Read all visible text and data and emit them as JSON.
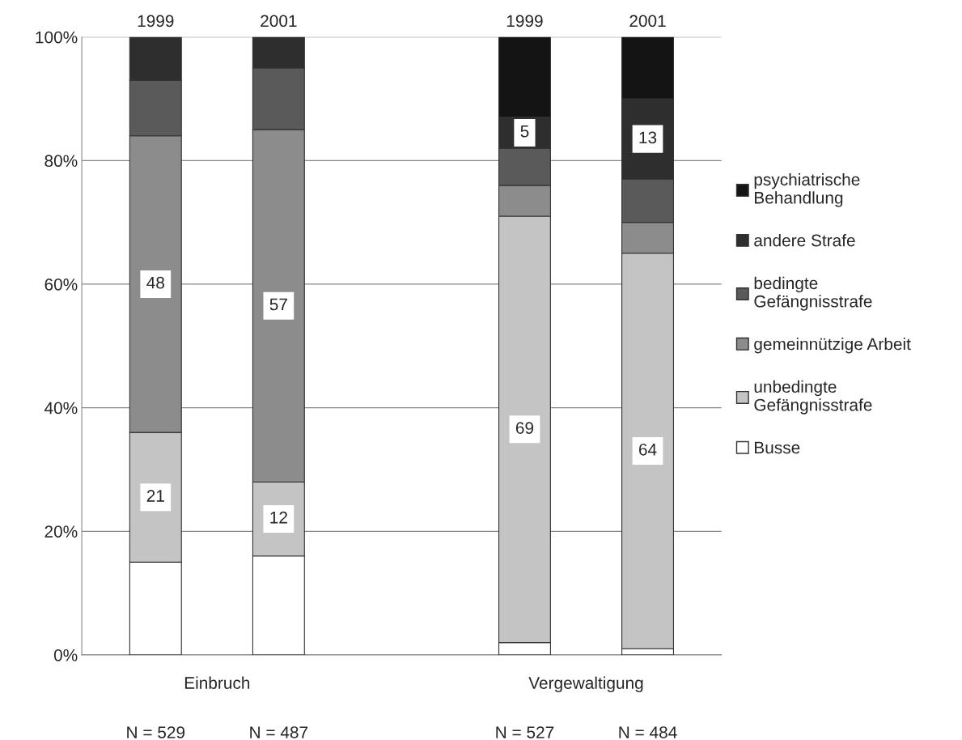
{
  "chart_data": {
    "type": "bar",
    "stacked": true,
    "categories": [
      "1999",
      "2001",
      null,
      "1999",
      "2001"
    ],
    "series": [
      {
        "name": "Busse",
        "color": "#ffffff",
        "values": [
          15,
          16,
          null,
          2,
          1
        ]
      },
      {
        "name": "unbedingte\nGefängnisstrafe",
        "color": "#c4c4c4",
        "values": [
          21,
          12,
          null,
          69,
          64
        ],
        "value_labels": [
          "21",
          "12",
          null,
          "69",
          "64"
        ]
      },
      {
        "name": "gemeinnützige Arbeit",
        "color": "#8c8c8c",
        "values": [
          48,
          57,
          null,
          5,
          5
        ],
        "value_labels": [
          "48",
          "57",
          null,
          null,
          null
        ]
      },
      {
        "name": "bedingte\nGefängnisstrafe",
        "color": "#5a5a5a",
        "values": [
          9,
          10,
          null,
          6,
          7
        ]
      },
      {
        "name": "andere Strafe",
        "color": "#2e2e2e",
        "values": [
          7,
          5,
          null,
          5,
          13
        ],
        "value_labels": [
          null,
          null,
          null,
          "5",
          "13"
        ]
      },
      {
        "name": "psychiatrische\nBehandlung",
        "color": "#141414",
        "values": [
          null,
          null,
          null,
          13,
          10
        ]
      }
    ],
    "ylim": [
      0,
      100
    ],
    "yticks": [
      {
        "value": 0,
        "label": "0%"
      },
      {
        "value": 20,
        "label": "20%"
      },
      {
        "value": 40,
        "label": "40%"
      },
      {
        "value": 60,
        "label": "60%"
      },
      {
        "value": 80,
        "label": "80%"
      },
      {
        "value": 100,
        "label": "100%"
      }
    ],
    "grid": "y",
    "legend": "right",
    "annotations": [
      "Einbruch",
      "Vergewaltigung",
      "N = 529",
      "N = 487",
      "N = 527",
      "N = 484"
    ]
  }
}
